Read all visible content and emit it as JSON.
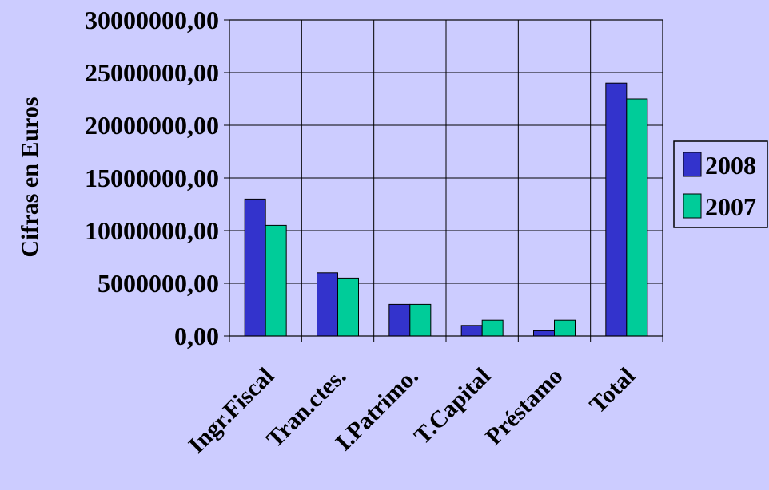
{
  "chart_data": {
    "type": "bar",
    "categories": [
      "Ingr.Fiscal",
      "Tran.ctes.",
      "I.Patrimo.",
      "T.Capital",
      "Préstamo",
      "Total"
    ],
    "series": [
      {
        "name": "2008",
        "values": [
          13000000,
          6000000,
          3000000,
          1000000,
          500000,
          24000000
        ],
        "color": "#3333cc"
      },
      {
        "name": "2007",
        "values": [
          10500000,
          5500000,
          3000000,
          1500000,
          1500000,
          22500000
        ],
        "color": "#00cc99"
      }
    ],
    "y_tick_labels": [
      "0,00",
      "5000000,00",
      "10000000,00",
      "15000000,00",
      "20000000,00",
      "25000000,00",
      "30000000,00"
    ],
    "ylabel": "Cifras en Euros",
    "xlabel": "",
    "title": "",
    "ylim": [
      0,
      30000000
    ],
    "y_tick_step": 5000000,
    "grid": true,
    "legend_position": "right",
    "colors": {
      "background": "#ccccff",
      "plot_area": "#ccccff",
      "grid": "#000000"
    }
  }
}
